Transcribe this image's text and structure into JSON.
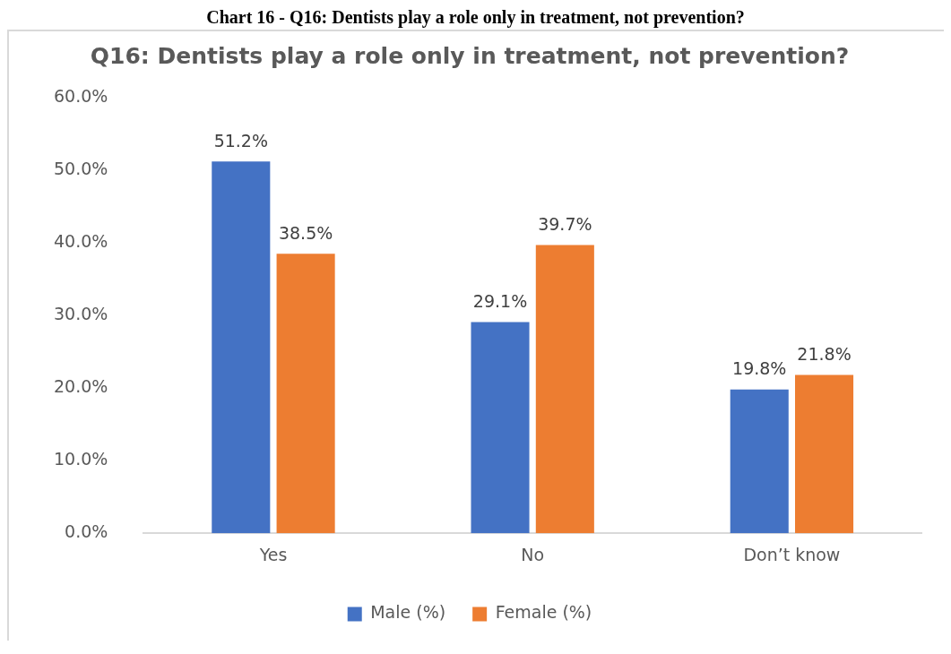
{
  "chart_data": {
    "type": "bar",
    "title": "Q16: Dentists play a role only in treatment, not prevention?",
    "annotations": [
      "Chart 16 - Q16: Dentists play a role only in treatment, not prevention?"
    ],
    "categories": [
      "Yes",
      "No",
      "Don’t know"
    ],
    "series": [
      {
        "name": "Male (%)",
        "color": "#4472c4",
        "values": [
          51.2,
          29.1,
          19.8
        ],
        "value_labels": [
          "51.2%",
          "29.1%",
          "19.8%"
        ]
      },
      {
        "name": "Female (%)",
        "color": "#ed7d31",
        "values": [
          38.5,
          39.7,
          21.8
        ],
        "value_labels": [
          "38.5%",
          "39.7%",
          "21.8%"
        ]
      }
    ],
    "ylim": [
      0,
      60
    ],
    "yticks": [
      {
        "value": 0,
        "label": "0.0%"
      },
      {
        "value": 10,
        "label": "10.0%"
      },
      {
        "value": 20,
        "label": "20.0%"
      },
      {
        "value": 30,
        "label": "30.0%"
      },
      {
        "value": 40,
        "label": "40.0%"
      },
      {
        "value": 50,
        "label": "50.0%"
      },
      {
        "value": 60,
        "label": "60.0%"
      }
    ],
    "grid": false,
    "legend": "bottom"
  }
}
